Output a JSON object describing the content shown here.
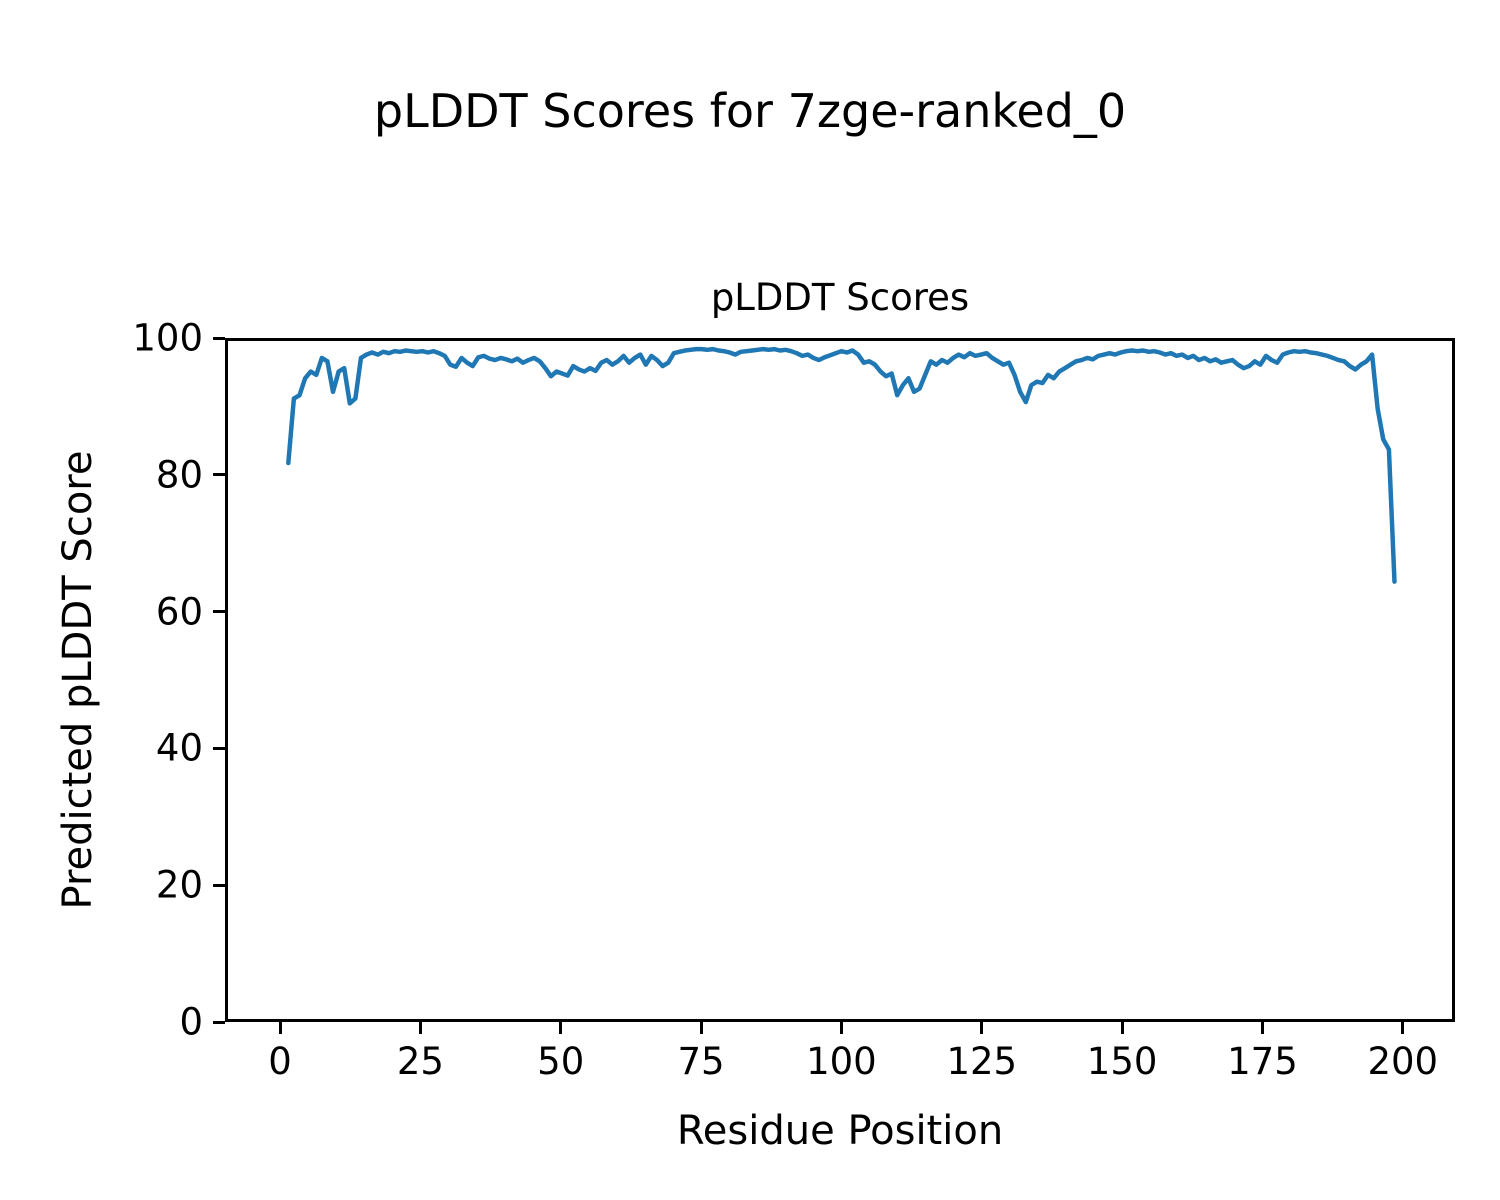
{
  "figure": {
    "title": "pLDDT Scores for 7zge-ranked_0"
  },
  "chart_data": {
    "type": "line",
    "title": "pLDDT Scores",
    "xlabel": "Residue Position",
    "ylabel": "Predicted pLDDT Score",
    "line_color": "#1f77b4",
    "background": "#ffffff",
    "grid": false,
    "legend": null,
    "xlim": [
      -9.8,
      209.3
    ],
    "ylim": [
      0,
      100
    ],
    "x_ticks": [
      0,
      25,
      50,
      75,
      100,
      125,
      150,
      175,
      200
    ],
    "y_ticks": [
      0,
      20,
      40,
      60,
      80,
      100
    ],
    "x_start": 1,
    "x_step": 1,
    "values": [
      82.0,
      91.5,
      92.0,
      94.5,
      95.5,
      95.0,
      97.5,
      97.0,
      92.5,
      95.5,
      96.0,
      90.8,
      91.5,
      97.5,
      98.0,
      98.3,
      98.0,
      98.4,
      98.2,
      98.5,
      98.4,
      98.6,
      98.5,
      98.4,
      98.5,
      98.3,
      98.5,
      98.2,
      97.8,
      96.5,
      96.2,
      97.5,
      96.8,
      96.3,
      97.6,
      97.8,
      97.4,
      97.2,
      97.5,
      97.3,
      97.0,
      97.4,
      96.8,
      97.2,
      97.5,
      97.0,
      96.0,
      94.8,
      95.5,
      95.2,
      94.9,
      96.3,
      95.8,
      95.5,
      96.0,
      95.6,
      96.8,
      97.2,
      96.5,
      97.0,
      97.8,
      96.8,
      97.5,
      98.0,
      96.5,
      97.8,
      97.2,
      96.3,
      96.8,
      98.2,
      98.4,
      98.6,
      98.7,
      98.8,
      98.8,
      98.7,
      98.8,
      98.6,
      98.5,
      98.3,
      98.0,
      98.4,
      98.5,
      98.6,
      98.7,
      98.8,
      98.7,
      98.8,
      98.6,
      98.7,
      98.5,
      98.2,
      97.8,
      98.0,
      97.5,
      97.2,
      97.6,
      97.9,
      98.2,
      98.5,
      98.3,
      98.6,
      98.0,
      96.8,
      97.0,
      96.5,
      95.5,
      94.8,
      95.2,
      92.0,
      93.5,
      94.5,
      92.5,
      93.0,
      95.0,
      97.0,
      96.5,
      97.2,
      96.8,
      97.5,
      98.0,
      97.6,
      98.2,
      97.8,
      98.0,
      98.2,
      97.5,
      97.0,
      96.5,
      96.8,
      95.0,
      92.5,
      91.0,
      93.5,
      94.0,
      93.8,
      95.0,
      94.5,
      95.5,
      96.0,
      96.5,
      97.0,
      97.2,
      97.5,
      97.3,
      97.8,
      98.0,
      98.2,
      98.0,
      98.3,
      98.5,
      98.6,
      98.5,
      98.6,
      98.4,
      98.5,
      98.3,
      98.0,
      98.2,
      97.8,
      98.0,
      97.5,
      97.8,
      97.2,
      97.5,
      97.0,
      97.3,
      96.8,
      97.0,
      97.2,
      96.5,
      96.0,
      96.3,
      97.0,
      96.5,
      97.8,
      97.2,
      96.8,
      98.0,
      98.3,
      98.5,
      98.4,
      98.5,
      98.3,
      98.2,
      98.0,
      97.8,
      97.5,
      97.2,
      97.0,
      96.3,
      95.8,
      96.5,
      97.0,
      98.0,
      90.0,
      85.5,
      84.0,
      64.5
    ]
  }
}
